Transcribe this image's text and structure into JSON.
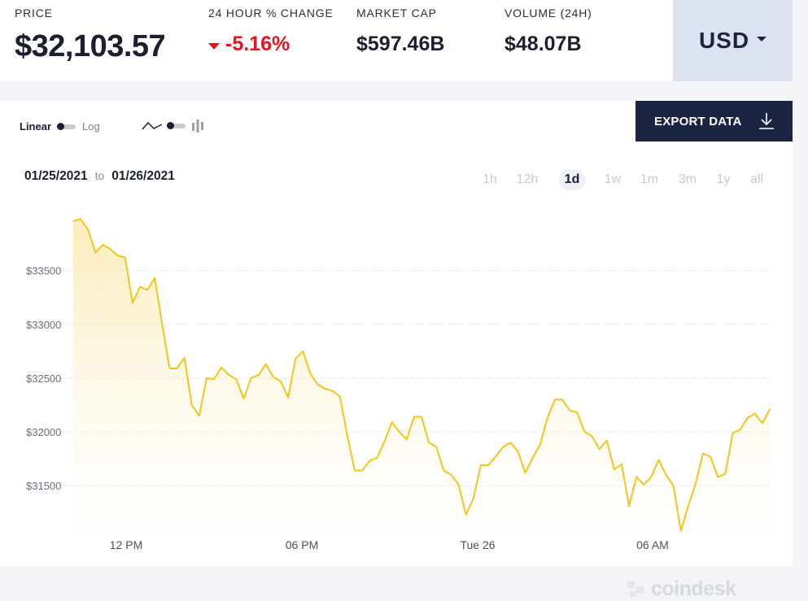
{
  "stats": {
    "price": {
      "label": "PRICE",
      "value": "$32,103.57"
    },
    "change": {
      "label": "24 HOUR % CHANGE",
      "value": "-5.16%"
    },
    "market_cap": {
      "label": "MARKET CAP",
      "value": "$597.46B"
    },
    "volume": {
      "label": "VOLUME (24H)",
      "value": "$48.07B"
    }
  },
  "currency": {
    "selected": "USD"
  },
  "controls": {
    "scale_linear": "Linear",
    "scale_log": "Log",
    "export_label": "EXPORT DATA",
    "date_from": "01/25/2021",
    "date_sep": "to",
    "date_to": "01/26/2021",
    "periods": [
      "1h",
      "12h",
      "1d",
      "1w",
      "1m",
      "3m",
      "1y",
      "all"
    ],
    "active_period": "1d"
  },
  "watermark": "coindesk",
  "colors": {
    "line": "#f5c518",
    "negative": "#e8141f",
    "accent": "#1b2543"
  },
  "chart_data": {
    "type": "area",
    "title": "",
    "xlabel": "",
    "ylabel": "",
    "x_ticks": [
      "12 PM",
      "06 PM",
      "Tue 26",
      "06 AM"
    ],
    "y_ticks": [
      "$31500",
      "$32000",
      "$32500",
      "$33000",
      "$33500"
    ],
    "y_tick_values": [
      31500,
      32000,
      32500,
      33000,
      33500
    ],
    "ylim": [
      31055,
      34095
    ],
    "grid": true,
    "legend": "none",
    "series": [
      {
        "values": [
          33960,
          33980,
          33880,
          33670,
          33740,
          33700,
          33640,
          33620,
          33200,
          33350,
          33320,
          33430,
          33000,
          32590,
          32590,
          32690,
          32250,
          32150,
          32500,
          32490,
          32600,
          32530,
          32490,
          32310,
          32500,
          32530,
          32630,
          32510,
          32470,
          32320,
          32680,
          32750,
          32540,
          32440,
          32400,
          32380,
          32330,
          31960,
          31640,
          31640,
          31730,
          31760,
          31910,
          32090,
          32000,
          31930,
          32140,
          32140,
          31900,
          31860,
          31640,
          31600,
          31510,
          31230,
          31380,
          31690,
          31690,
          31770,
          31860,
          31900,
          31820,
          31620,
          31760,
          31880,
          32130,
          32300,
          32300,
          32200,
          32180,
          32000,
          31960,
          31840,
          31920,
          31650,
          31700,
          31310,
          31580,
          31510,
          31580,
          31740,
          31600,
          31500,
          31080,
          31310,
          31520,
          31800,
          31770,
          31580,
          31610,
          31990,
          32020,
          32130,
          32170,
          32080,
          32210
        ]
      }
    ]
  }
}
